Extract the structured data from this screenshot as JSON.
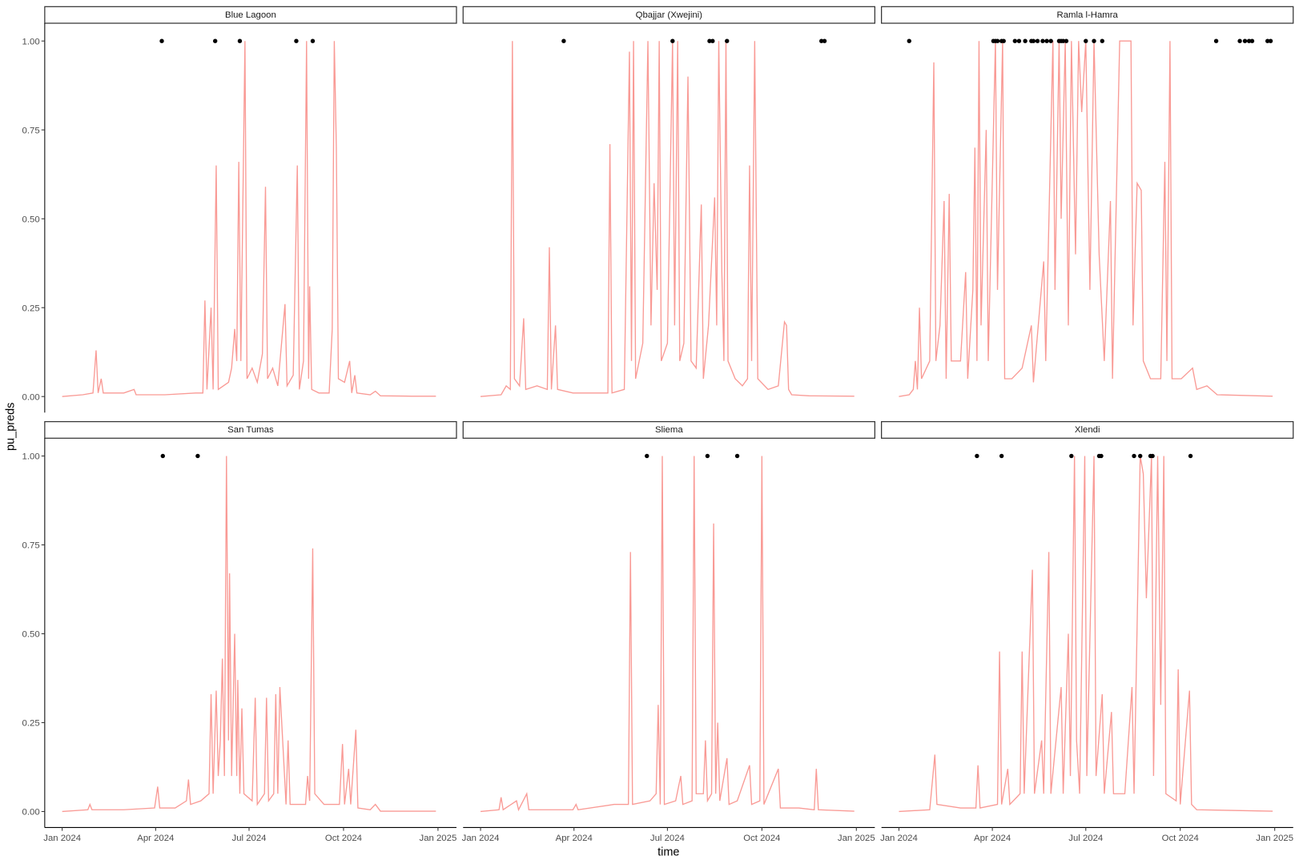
{
  "chart_data": {
    "type": "line",
    "x_label": "time",
    "y_label": "pu_preds",
    "xlim": [
      -17,
      384
    ],
    "ylim": [
      -0.045,
      1.05
    ],
    "xticks": [
      {
        "value": 0,
        "label": "Jan 2024"
      },
      {
        "value": 91,
        "label": "Apr 2024"
      },
      {
        "value": 182,
        "label": "Jul 2024"
      },
      {
        "value": 274,
        "label": "Oct 2024"
      },
      {
        "value": 366,
        "label": "Jan 2025"
      }
    ],
    "yticks": [
      {
        "value": 0,
        "label": "0.00"
      },
      {
        "value": 0.25,
        "label": "0.25"
      },
      {
        "value": 0.5,
        "label": "0.50"
      },
      {
        "value": 0.75,
        "label": "0.75"
      },
      {
        "value": 1,
        "label": "1.00"
      }
    ],
    "facets": [
      {
        "title": "Blue Lagoon",
        "line": {
          "color": "#f99a95",
          "x": [
            0,
            20,
            30,
            33,
            35,
            38,
            40,
            60,
            70,
            72,
            100,
            130,
            137,
            139,
            141,
            145,
            147,
            150,
            152,
            162,
            165,
            168,
            170,
            172,
            174,
            178,
            180,
            185,
            190,
            195,
            198,
            200,
            205,
            210,
            217,
            219,
            225,
            229,
            231,
            235,
            238,
            240,
            241,
            243,
            250,
            260,
            263,
            265,
            267,
            269,
            275,
            280,
            282,
            285,
            287,
            300,
            305,
            310,
            340,
            364
          ],
          "values": [
            0,
            0.005,
            0.01,
            0.13,
            0.01,
            0.05,
            0.01,
            0.01,
            0.02,
            0.005,
            0.005,
            0.01,
            0.01,
            0.27,
            0.02,
            0.25,
            0.02,
            0.65,
            0.02,
            0.04,
            0.08,
            0.19,
            0.1,
            0.66,
            0.1,
            1,
            0.05,
            0.08,
            0.04,
            0.12,
            0.59,
            0.05,
            0.08,
            0.03,
            0.26,
            0.03,
            0.06,
            0.65,
            0.02,
            0.1,
            1,
            0.05,
            0.31,
            0.02,
            0.01,
            0.01,
            0.19,
            1,
            0.7,
            0.05,
            0.04,
            0.1,
            0.01,
            0.06,
            0.01,
            0.005,
            0.015,
            0.002,
            0.001,
            0.001
          ]
        },
        "points": {
          "color": "#000000",
          "x": [
            97,
            149,
            173,
            228,
            244
          ],
          "values": [
            1,
            1,
            1,
            1,
            1
          ]
        }
      },
      {
        "title": "Qbajjar (Xwejini)",
        "line": {
          "color": "#f99a95",
          "x": [
            0,
            20,
            25,
            29,
            31,
            33,
            38,
            42,
            44,
            55,
            65,
            67,
            69,
            73,
            75,
            90,
            110,
            124,
            126,
            128,
            140,
            145,
            147,
            149,
            151,
            158,
            163,
            166,
            169,
            172,
            174,
            176,
            182,
            187,
            189,
            192,
            194,
            198,
            202,
            205,
            210,
            215,
            217,
            222,
            228,
            230,
            232,
            235,
            237,
            239,
            241,
            248,
            255,
            260,
            262,
            264,
            267,
            270,
            280,
            290,
            296,
            298,
            300,
            303,
            320,
            364
          ],
          "values": [
            0,
            0.005,
            0.03,
            0.02,
            1,
            0.05,
            0.03,
            0.22,
            0.02,
            0.03,
            0.02,
            0.42,
            0.02,
            0.2,
            0.02,
            0.01,
            0.01,
            0.01,
            0.71,
            0.01,
            0.02,
            0.97,
            0.1,
            1,
            0.05,
            0.15,
            1,
            0.2,
            0.6,
            0.3,
            1,
            0.1,
            0.15,
            1,
            0.2,
            1,
            0.1,
            0.15,
            0.9,
            0.1,
            0.08,
            0.54,
            0.05,
            0.2,
            0.56,
            0.2,
            1,
            0.35,
            0.1,
            1,
            0.1,
            0.05,
            0.03,
            0.05,
            0.65,
            0.1,
            1,
            0.05,
            0.02,
            0.03,
            0.21,
            0.2,
            0.02,
            0.005,
            0.002,
            0.001
          ]
        },
        "points": {
          "color": "#000000",
          "x": [
            81,
            187,
            223,
            226,
            240,
            332,
            335
          ],
          "values": [
            1,
            1,
            1,
            1,
            1,
            1,
            1
          ]
        }
      },
      {
        "title": "Ramla l-Hamra",
        "line": {
          "color": "#f99a95",
          "x": [
            0,
            10,
            14,
            16,
            18,
            20,
            22,
            30,
            34,
            36,
            40,
            44,
            46,
            49,
            51,
            60,
            65,
            67,
            72,
            74,
            76,
            78,
            80,
            85,
            87,
            94,
            96,
            101,
            103,
            110,
            120,
            129,
            131,
            141,
            143,
            150,
            152,
            156,
            158,
            162,
            165,
            168,
            172,
            175,
            178,
            182,
            186,
            190,
            195,
            200,
            206,
            208,
            215,
            220,
            226,
            228,
            232,
            236,
            238,
            245,
            255,
            259,
            261,
            264,
            266,
            275,
            286,
            290,
            300,
            310,
            364
          ],
          "values": [
            0,
            0.005,
            0.02,
            0.1,
            0.02,
            0.25,
            0.05,
            0.1,
            0.94,
            0.1,
            0.2,
            0.55,
            0.05,
            0.57,
            0.1,
            0.1,
            0.35,
            0.05,
            0.3,
            0.7,
            0.1,
            1,
            0.2,
            0.75,
            0.1,
            1,
            0.3,
            1,
            0.05,
            0.05,
            0.08,
            0.2,
            0.04,
            0.38,
            0.1,
            1,
            0.3,
            1,
            0.5,
            1,
            0.2,
            1,
            0.4,
            1,
            0.8,
            1,
            0.3,
            1,
            0.4,
            0.1,
            0.55,
            0.05,
            1,
            1,
            1,
            0.2,
            0.6,
            0.58,
            0.1,
            0.05,
            0.05,
            0.66,
            0.1,
            1,
            0.05,
            0.05,
            0.08,
            0.02,
            0.03,
            0.005,
            0.001
          ]
        },
        "points": {
          "color": "#000000",
          "x": [
            10,
            92,
            94,
            96,
            100,
            102,
            113,
            117,
            123,
            129,
            131,
            135,
            140,
            144,
            148,
            156,
            158,
            160,
            163,
            182,
            190,
            198,
            309,
            332,
            337,
            341,
            344,
            359,
            362
          ],
          "values": [
            1,
            1,
            1,
            1,
            1,
            1,
            1,
            1,
            1,
            1,
            1,
            1,
            1,
            1,
            1,
            1,
            1,
            1,
            1,
            1,
            1,
            1,
            1,
            1,
            1,
            1,
            1,
            1,
            1
          ]
        }
      },
      {
        "title": "San Tumas",
        "line": {
          "color": "#f99a95",
          "x": [
            0,
            25,
            27,
            29,
            60,
            90,
            93,
            95,
            110,
            121,
            123,
            125,
            135,
            143,
            145,
            147,
            150,
            152,
            154,
            156,
            158,
            160,
            162,
            163,
            165,
            168,
            170,
            171,
            173,
            175,
            177,
            185,
            188,
            190,
            197,
            199,
            201,
            206,
            208,
            210,
            212,
            218,
            220,
            222,
            237,
            239,
            241,
            244,
            246,
            255,
            270,
            273,
            275,
            279,
            281,
            286,
            288,
            300,
            305,
            310,
            364
          ],
          "values": [
            0,
            0.005,
            0.02,
            0.005,
            0.005,
            0.01,
            0.07,
            0.01,
            0.01,
            0.03,
            0.09,
            0.02,
            0.03,
            0.05,
            0.33,
            0.05,
            0.34,
            0.1,
            0.2,
            0.43,
            0.1,
            1,
            0.2,
            0.67,
            0.1,
            0.5,
            0.1,
            0.37,
            0.05,
            0.29,
            0.05,
            0.03,
            0.32,
            0.02,
            0.05,
            0.32,
            0.03,
            0.05,
            0.33,
            0.05,
            0.35,
            0.02,
            0.2,
            0.02,
            0.02,
            0.1,
            0.03,
            0.74,
            0.05,
            0.02,
            0.02,
            0.19,
            0.02,
            0.12,
            0.02,
            0.23,
            0.01,
            0.005,
            0.02,
            0.001,
            0.001
          ]
        },
        "points": {
          "color": "#000000",
          "x": [
            98,
            132
          ],
          "values": [
            1,
            1
          ]
        }
      },
      {
        "title": "Sliema",
        "line": {
          "color": "#f99a95",
          "x": [
            0,
            18,
            20,
            22,
            35,
            37,
            45,
            47,
            90,
            93,
            95,
            130,
            144,
            146,
            148,
            165,
            171,
            173,
            175,
            177,
            179,
            190,
            195,
            197,
            206,
            208,
            210,
            217,
            219,
            221,
            225,
            227,
            229,
            231,
            233,
            240,
            242,
            250,
            262,
            264,
            272,
            274,
            276,
            290,
            292,
            310,
            325,
            327,
            329,
            364
          ],
          "values": [
            0,
            0.005,
            0.04,
            0.005,
            0.03,
            0.005,
            0.05,
            0.005,
            0.005,
            0.02,
            0.005,
            0.02,
            0.02,
            0.73,
            0.02,
            0.03,
            0.05,
            0.3,
            0.02,
            1,
            0.02,
            0.03,
            0.1,
            0.02,
            0.03,
            1,
            0.05,
            0.05,
            0.2,
            0.03,
            0.05,
            0.81,
            0.05,
            0.25,
            0.03,
            0.15,
            0.02,
            0.03,
            0.13,
            0.02,
            0.03,
            1,
            0.02,
            0.12,
            0.01,
            0.01,
            0.005,
            0.12,
            0.005,
            0.001
          ]
        },
        "points": {
          "color": "#000000",
          "x": [
            162,
            221,
            250
          ],
          "values": [
            1,
            1,
            1
          ]
        }
      },
      {
        "title": "Xlendi",
        "line": {
          "color": "#f99a95",
          "x": [
            0,
            30,
            35,
            37,
            60,
            75,
            77,
            79,
            96,
            98,
            100,
            106,
            108,
            118,
            120,
            122,
            130,
            132,
            139,
            141,
            146,
            148,
            158,
            160,
            165,
            167,
            171,
            173,
            176,
            181,
            183,
            190,
            192,
            198,
            200,
            207,
            209,
            220,
            227,
            229,
            235,
            238,
            241,
            246,
            248,
            252,
            255,
            258,
            260,
            270,
            272,
            274,
            283,
            285,
            290,
            364
          ],
          "values": [
            0,
            0.005,
            0.16,
            0.02,
            0.01,
            0.01,
            0.13,
            0.01,
            0.02,
            0.45,
            0.02,
            0.12,
            0.02,
            0.05,
            0.45,
            0.05,
            0.68,
            0.05,
            0.2,
            0.05,
            0.73,
            0.05,
            0.35,
            0.05,
            0.5,
            0.1,
            1,
            0.2,
            0.05,
            1,
            0.1,
            1,
            0.1,
            0.33,
            0.05,
            0.28,
            0.05,
            0.05,
            0.35,
            0.05,
            1,
            0.95,
            0.6,
            1,
            0.1,
            1,
            0.3,
            1,
            0.05,
            0.03,
            0.4,
            0.02,
            0.34,
            0.02,
            0.005,
            0.001
          ]
        },
        "points": {
          "color": "#000000",
          "x": [
            76,
            100,
            168,
            195,
            197,
            229,
            235,
            245,
            247,
            284
          ],
          "values": [
            1,
            1,
            1,
            1,
            1,
            1,
            1,
            1,
            1,
            1
          ]
        }
      }
    ]
  }
}
